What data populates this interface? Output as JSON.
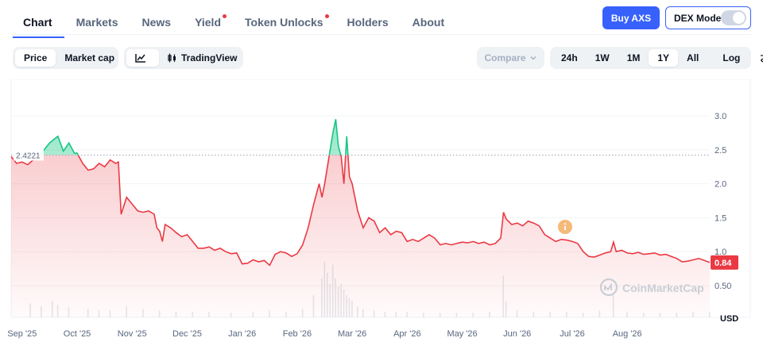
{
  "tabs": [
    {
      "label": "Chart",
      "active": true,
      "dot": false
    },
    {
      "label": "Markets",
      "active": false,
      "dot": false
    },
    {
      "label": "News",
      "active": false,
      "dot": false
    },
    {
      "label": "Yield",
      "active": false,
      "dot": true
    },
    {
      "label": "Token Unlocks",
      "active": false,
      "dot": true
    },
    {
      "label": "Holders",
      "active": false,
      "dot": false
    },
    {
      "label": "About",
      "active": false,
      "dot": false
    }
  ],
  "header": {
    "buy_label": "Buy AXS",
    "dex_label": "DEX Mode",
    "dex_enabled": false
  },
  "toolbar": {
    "metric_options": [
      "Price",
      "Market cap"
    ],
    "metric_selected": "Price",
    "line_icon": "line-chart-icon",
    "tradingview_label": "TradingView",
    "compare_label": "Compare",
    "ranges": [
      "24h",
      "1W",
      "1M",
      "1Y",
      "All"
    ],
    "range_selected": "1Y",
    "scale_label": "Log",
    "settings_icon": "sliders-icon"
  },
  "colors": {
    "accent": "#3861fb",
    "up": "#16c784",
    "down": "#ea3943"
  },
  "chart_data": {
    "type": "area",
    "baseline_label": "2.4221",
    "baseline": 2.4221,
    "current_label": "0.84",
    "unit_label": "USD",
    "watermark": "CoinMarketCap",
    "annotation_icon": "info-icon",
    "y_ticks": [
      "3.0",
      "2.5",
      "2.0",
      "1.5",
      "1.0",
      "0.50"
    ],
    "y_tick_values": [
      3.0,
      2.5,
      2.0,
      1.5,
      1.0,
      0.5
    ],
    "ylim": [
      0.3,
      3.3
    ],
    "x_ticks": [
      "Sep '25",
      "Oct '25",
      "Nov '25",
      "Dec '25",
      "Jan '26",
      "Feb '26",
      "Mar '26",
      "Apr '26",
      "May '26",
      "Jun '26",
      "Jul '26",
      "Aug '26"
    ],
    "x_tick_months": [
      1,
      2,
      3,
      4,
      5,
      6,
      7,
      8,
      9,
      10,
      11,
      12
    ],
    "x_range_months": [
      0.8,
      13.5
    ],
    "series": [
      {
        "points": [
          [
            0.8,
            2.4
          ],
          [
            0.9,
            2.3
          ],
          [
            1.0,
            2.32
          ],
          [
            1.1,
            2.28
          ],
          [
            1.2,
            2.35
          ],
          [
            1.35,
            2.45
          ],
          [
            1.5,
            2.6
          ],
          [
            1.65,
            2.7
          ],
          [
            1.75,
            2.48
          ],
          [
            1.85,
            2.6
          ],
          [
            1.95,
            2.45
          ],
          [
            2.0,
            2.45
          ],
          [
            2.1,
            2.3
          ],
          [
            2.2,
            2.2
          ],
          [
            2.3,
            2.22
          ],
          [
            2.4,
            2.3
          ],
          [
            2.5,
            2.25
          ],
          [
            2.6,
            2.35
          ],
          [
            2.7,
            2.3
          ],
          [
            2.75,
            2.32
          ],
          [
            2.8,
            1.55
          ],
          [
            2.9,
            1.8
          ],
          [
            3.0,
            1.7
          ],
          [
            3.1,
            1.6
          ],
          [
            3.2,
            1.58
          ],
          [
            3.3,
            1.6
          ],
          [
            3.4,
            1.55
          ],
          [
            3.45,
            1.35
          ],
          [
            3.5,
            1.3
          ],
          [
            3.55,
            1.15
          ],
          [
            3.6,
            1.4
          ],
          [
            3.7,
            1.35
          ],
          [
            3.8,
            1.28
          ],
          [
            3.9,
            1.22
          ],
          [
            4.0,
            1.25
          ],
          [
            4.1,
            1.15
          ],
          [
            4.2,
            1.05
          ],
          [
            4.3,
            1.05
          ],
          [
            4.4,
            1.07
          ],
          [
            4.5,
            1.02
          ],
          [
            4.6,
            1.05
          ],
          [
            4.7,
            1.0
          ],
          [
            4.8,
            0.97
          ],
          [
            4.9,
            0.98
          ],
          [
            5.0,
            0.82
          ],
          [
            5.1,
            0.83
          ],
          [
            5.2,
            0.88
          ],
          [
            5.3,
            0.85
          ],
          [
            5.4,
            0.87
          ],
          [
            5.5,
            0.8
          ],
          [
            5.6,
            0.96
          ],
          [
            5.7,
            1.0
          ],
          [
            5.8,
            0.98
          ],
          [
            5.9,
            0.93
          ],
          [
            6.0,
            0.97
          ],
          [
            6.1,
            1.1
          ],
          [
            6.2,
            1.35
          ],
          [
            6.3,
            1.7
          ],
          [
            6.4,
            2.0
          ],
          [
            6.45,
            1.8
          ],
          [
            6.5,
            2.0
          ],
          [
            6.6,
            2.5
          ],
          [
            6.65,
            2.75
          ],
          [
            6.7,
            2.95
          ],
          [
            6.75,
            2.55
          ],
          [
            6.8,
            2.4
          ],
          [
            6.85,
            2.0
          ],
          [
            6.9,
            2.7
          ],
          [
            6.95,
            2.1
          ],
          [
            7.0,
            2.0
          ],
          [
            7.1,
            1.6
          ],
          [
            7.2,
            1.35
          ],
          [
            7.3,
            1.5
          ],
          [
            7.4,
            1.45
          ],
          [
            7.5,
            1.28
          ],
          [
            7.6,
            1.35
          ],
          [
            7.7,
            1.25
          ],
          [
            7.8,
            1.3
          ],
          [
            7.9,
            1.28
          ],
          [
            8.0,
            1.15
          ],
          [
            8.1,
            1.18
          ],
          [
            8.2,
            1.15
          ],
          [
            8.3,
            1.2
          ],
          [
            8.4,
            1.25
          ],
          [
            8.5,
            1.2
          ],
          [
            8.6,
            1.1
          ],
          [
            8.7,
            1.12
          ],
          [
            8.8,
            1.1
          ],
          [
            8.9,
            1.12
          ],
          [
            9.0,
            1.14
          ],
          [
            9.1,
            1.13
          ],
          [
            9.2,
            1.15
          ],
          [
            9.3,
            1.12
          ],
          [
            9.4,
            1.14
          ],
          [
            9.5,
            1.1
          ],
          [
            9.6,
            1.12
          ],
          [
            9.7,
            1.2
          ],
          [
            9.75,
            1.58
          ],
          [
            9.8,
            1.48
          ],
          [
            9.9,
            1.4
          ],
          [
            10.0,
            1.42
          ],
          [
            10.1,
            1.38
          ],
          [
            10.2,
            1.45
          ],
          [
            10.3,
            1.42
          ],
          [
            10.4,
            1.38
          ],
          [
            10.5,
            1.25
          ],
          [
            10.6,
            1.2
          ],
          [
            10.7,
            1.15
          ],
          [
            10.8,
            1.18
          ],
          [
            10.9,
            1.17
          ],
          [
            11.0,
            1.15
          ],
          [
            11.1,
            1.12
          ],
          [
            11.2,
            1.0
          ],
          [
            11.3,
            0.93
          ],
          [
            11.4,
            0.92
          ],
          [
            11.5,
            0.95
          ],
          [
            11.6,
            0.98
          ],
          [
            11.7,
            1.0
          ],
          [
            11.75,
            1.14
          ],
          [
            11.8,
            1.0
          ],
          [
            11.9,
            1.02
          ],
          [
            12.0,
            0.98
          ],
          [
            12.1,
            0.97
          ],
          [
            12.2,
            0.99
          ],
          [
            12.3,
            0.96
          ],
          [
            12.4,
            0.97
          ],
          [
            12.5,
            0.98
          ],
          [
            12.6,
            0.95
          ],
          [
            12.7,
            0.96
          ],
          [
            12.8,
            0.93
          ],
          [
            12.9,
            0.9
          ],
          [
            13.0,
            0.85
          ],
          [
            13.1,
            0.86
          ],
          [
            13.2,
            0.88
          ],
          [
            13.3,
            0.9
          ],
          [
            13.4,
            0.87
          ],
          [
            13.5,
            0.84
          ]
        ]
      }
    ],
    "volume_months": [
      1.15,
      1.35,
      1.55,
      1.65,
      1.85,
      2.2,
      2.4,
      2.6,
      2.9,
      3.2,
      3.5,
      3.8,
      4.1,
      4.4,
      4.8,
      5.2,
      5.5,
      5.8,
      6.1,
      6.3,
      6.45,
      6.5,
      6.55,
      6.6,
      6.65,
      6.7,
      6.75,
      6.8,
      6.85,
      6.9,
      6.95,
      7.0,
      7.1,
      7.2,
      7.4,
      7.6,
      7.8,
      8.0,
      8.3,
      8.6,
      8.9,
      9.2,
      9.5,
      9.75,
      9.8,
      10.0,
      10.3,
      10.6,
      10.9,
      11.2,
      11.5,
      11.75,
      12.0,
      12.3,
      12.6,
      12.9,
      13.2,
      13.5
    ],
    "volume_values": [
      0.25,
      0.2,
      0.3,
      0.22,
      0.18,
      0.15,
      0.12,
      0.12,
      0.2,
      0.15,
      0.12,
      0.1,
      0.1,
      0.1,
      0.08,
      0.1,
      0.12,
      0.1,
      0.15,
      0.4,
      0.7,
      1.0,
      0.8,
      0.6,
      0.95,
      0.7,
      0.55,
      0.6,
      0.5,
      0.4,
      0.35,
      0.3,
      0.2,
      0.15,
      0.12,
      0.1,
      0.1,
      0.1,
      0.08,
      0.08,
      0.08,
      0.08,
      0.1,
      0.75,
      0.3,
      0.12,
      0.1,
      0.1,
      0.1,
      0.08,
      0.12,
      0.4,
      0.1,
      0.08,
      0.08,
      0.08,
      0.1,
      0.1
    ]
  }
}
